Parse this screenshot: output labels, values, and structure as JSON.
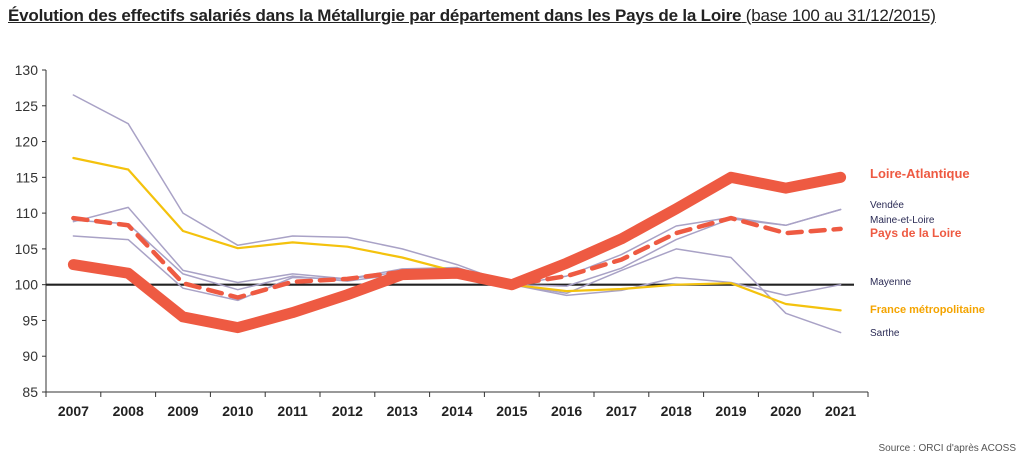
{
  "title": {
    "main": "Évolution des effectifs salariés dans la Métallurgie par département dans les Pays de la Loire",
    "sub": "(base 100 au 31/12/2015)"
  },
  "source": "Source : ORCI d'après ACOSS",
  "chart_data": {
    "type": "line",
    "categories": [
      "2007",
      "2008",
      "2009",
      "2010",
      "2011",
      "2012",
      "2013",
      "2014",
      "2015",
      "2016",
      "2017",
      "2018",
      "2019",
      "2020",
      "2021"
    ],
    "ylim": [
      85,
      130
    ],
    "yticks": [
      85,
      90,
      95,
      100,
      105,
      110,
      115,
      120,
      125,
      130
    ],
    "grid": false,
    "reference_value": 100,
    "series": [
      {
        "name": "Mayenne",
        "color": "#a9a2c6",
        "style": "thin",
        "label_color": "#2b2b55",
        "values": [
          126.5,
          122.5,
          110,
          105.5,
          106.8,
          106.6,
          105,
          102.8,
          100,
          98.5,
          99.2,
          101,
          100.3,
          98.5,
          100
        ]
      },
      {
        "name": "Sarthe",
        "color": "#a9a2c6",
        "style": "thin",
        "label_color": "#2b2b55",
        "values": [
          106.8,
          106.3,
          99.5,
          97.8,
          101,
          100.8,
          102.2,
          102.4,
          100,
          98.8,
          102,
          105,
          103.8,
          96,
          93.3
        ]
      },
      {
        "name": "Maine-et-Loire",
        "color": "#a9a2c6",
        "style": "thin",
        "label_color": "#2b2b55",
        "values": [
          109,
          108.5,
          101.5,
          99.3,
          101.2,
          100.5,
          101.5,
          101.5,
          100,
          99.8,
          102.3,
          106.3,
          109.2,
          108.3,
          110.5
        ]
      },
      {
        "name": "Vendée",
        "color": "#a9a2c6",
        "style": "thin",
        "label_color": "#2b2b55",
        "values": [
          108.8,
          110.8,
          102,
          100.3,
          101.5,
          100.8,
          101.8,
          101.6,
          100,
          101.2,
          104.2,
          108.2,
          109.4,
          108.3,
          110.5
        ]
      },
      {
        "name": "France métropolitaine",
        "color": "#f4c20d",
        "style": "medium",
        "label_color": "#f4a400",
        "values": [
          117.7,
          116.1,
          107.5,
          105.1,
          105.9,
          105.3,
          103.8,
          101.8,
          100,
          99.1,
          99.4,
          100,
          100.2,
          97.3,
          96.4
        ]
      },
      {
        "name": "Pays de la Loire",
        "color": "#ee5a42",
        "style": "dashed",
        "label_color": "#ee5a42",
        "values": [
          109.3,
          108.3,
          100.2,
          98.2,
          100.4,
          100.8,
          101.8,
          101.8,
          100,
          101.2,
          103.5,
          107.2,
          109.3,
          107.2,
          107.8
        ]
      },
      {
        "name": "Loire-Atlantique",
        "color": "#ee5a42",
        "style": "thick",
        "label_color": "#ee5a42",
        "values": [
          102.8,
          101.6,
          95.5,
          94,
          96.1,
          98.6,
          101.4,
          101.6,
          100,
          103,
          106.4,
          110.6,
          115,
          113.5,
          115
        ]
      }
    ],
    "labels_order": [
      "Loire-Atlantique",
      "Vendée",
      "Maine-et-Loire",
      "Pays de la Loire",
      "Mayenne",
      "France métropolitaine",
      "Sarthe"
    ]
  }
}
